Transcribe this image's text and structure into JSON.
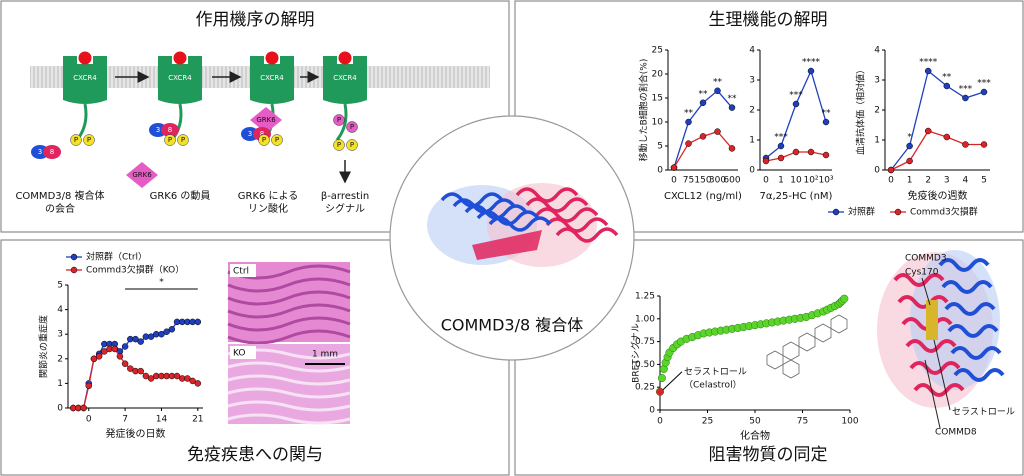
{
  "panels": {
    "mechanism": {
      "title": "作用機序の解明",
      "receptor": "CXCR4",
      "steps": [
        [
          "COMMD3/8 複合体",
          "の会合"
        ],
        [
          "GRK6 の動員"
        ],
        [
          "GRK6 による",
          "リン酸化"
        ],
        [
          "β-arrestin",
          "シグナル"
        ]
      ],
      "labels": {
        "commd3": "3",
        "commd8": "8",
        "phospho": "P",
        "grk6": "GRK6"
      }
    },
    "physiology": {
      "title": "生理機能の解明"
    },
    "disease": {
      "title": "免疫疾患への関与",
      "images": [
        "Ctrl",
        "KO"
      ],
      "scale_bar": "1 mm"
    },
    "inhibitor": {
      "title": "阻害物質の同定",
      "structure_labels": [
        "COMMD3",
        "Cys170",
        "セラストロール",
        "COMMD8"
      ]
    }
  },
  "center": {
    "title": "COMMD3/8 複合体"
  },
  "chart_data": [
    {
      "type": "line",
      "xlabel": "CXCL12 (ng/ml)",
      "ylabel": "移動したB細胞の割合(%)",
      "categories": [
        "0",
        "75",
        "150",
        "300",
        "600"
      ],
      "ylim": [
        0,
        25
      ],
      "yticks": [
        0,
        5,
        10,
        15,
        20,
        25
      ],
      "series": [
        {
          "name": "対照群",
          "color": "#1f3fbf",
          "values": [
            0.5,
            10,
            14,
            16.5,
            13
          ]
        },
        {
          "name": "Commd3欠損群",
          "color": "#d9252a",
          "values": [
            0.5,
            5.5,
            7,
            8,
            4.5
          ]
        }
      ],
      "significance": [
        null,
        "**",
        "**",
        "**",
        "**"
      ]
    },
    {
      "type": "line",
      "xlabel": "7α,25-HC (nM)",
      "categories": [
        "0",
        "1",
        "10",
        "10²",
        "10³"
      ],
      "ylim": [
        0,
        4
      ],
      "yticks": [
        0,
        1,
        2,
        3,
        4
      ],
      "series": [
        {
          "name": "対照群",
          "color": "#1f3fbf",
          "values": [
            0.4,
            0.8,
            2.2,
            3.3,
            1.6
          ]
        },
        {
          "name": "Commd3欠損群",
          "color": "#d9252a",
          "values": [
            0.3,
            0.4,
            0.6,
            0.6,
            0.5
          ]
        }
      ],
      "significance": [
        null,
        "***",
        "***",
        "****",
        "**"
      ]
    },
    {
      "type": "line",
      "xlabel": "免疫後の週数",
      "ylabel": "血清抗体価（相対値）",
      "categories": [
        "0",
        "1",
        "2",
        "3",
        "4",
        "5"
      ],
      "ylim": [
        0,
        4
      ],
      "yticks": [
        0,
        1,
        2,
        3,
        4
      ],
      "series": [
        {
          "name": "対照群",
          "color": "#1f3fbf",
          "values": [
            0,
            0.8,
            3.3,
            2.8,
            2.4,
            2.6
          ]
        },
        {
          "name": "Commd3欠損群",
          "color": "#d9252a",
          "values": [
            0,
            0.3,
            1.3,
            1.1,
            0.85,
            0.85
          ]
        }
      ],
      "significance": [
        null,
        "*",
        "****",
        "**",
        "***",
        "***"
      ],
      "legend": "below"
    },
    {
      "type": "line",
      "xlabel": "発症後の日数",
      "ylabel": "関節炎の重症度",
      "x": [
        -3,
        -2,
        -1,
        0,
        1,
        2,
        3,
        4,
        5,
        6,
        7,
        8,
        9,
        10,
        11,
        12,
        13,
        14,
        15,
        16,
        17,
        18,
        19,
        20,
        21
      ],
      "xlim": [
        -4,
        22
      ],
      "xticks": [
        0,
        7,
        14,
        21
      ],
      "ylim": [
        0,
        5
      ],
      "yticks": [
        0,
        1,
        2,
        3,
        4,
        5
      ],
      "series": [
        {
          "name": "対照群（Ctrl）",
          "color": "#1f3fbf",
          "values": [
            0,
            0,
            0,
            1,
            2,
            2.2,
            2.6,
            2.6,
            2.6,
            2.3,
            2.5,
            2.8,
            2.8,
            2.7,
            2.9,
            2.9,
            3,
            3,
            3.1,
            3.2,
            3.5,
            3.5,
            3.5,
            3.5,
            3.5
          ]
        },
        {
          "name": "Commd3欠損群（KO）",
          "color": "#d9252a",
          "values": [
            0,
            0,
            0,
            0.9,
            2,
            2.1,
            2.3,
            2.4,
            2.4,
            2.1,
            1.8,
            1.6,
            1.5,
            1.5,
            1.3,
            1.2,
            1.3,
            1.3,
            1.3,
            1.3,
            1.3,
            1.2,
            1.2,
            1.1,
            1.0
          ]
        }
      ],
      "significance_label": "*",
      "legend": "upper left"
    },
    {
      "type": "scatter",
      "xlabel": "化合物",
      "ylabel": "BRETシグナル",
      "xlim": [
        0,
        100
      ],
      "xticks": [
        0,
        25,
        50,
        75,
        100
      ],
      "ylim": [
        0,
        1.25
      ],
      "yticks": [
        0,
        {
          "value": 0.25,
          "label": "0.25"
        },
        {
          "value": 0.5,
          "label": "0.50"
        },
        {
          "value": 0.75,
          "label": "0.75"
        },
        {
          "value": 1,
          "label": "1.00"
        },
        {
          "value": 1.25,
          "label": "1.25"
        }
      ],
      "series": [
        {
          "color": "#5ad52a",
          "x": [
            1,
            2,
            3,
            4,
            5,
            7,
            9,
            11,
            14,
            17,
            20,
            23,
            26,
            29,
            32,
            35,
            38,
            41,
            44,
            47,
            50,
            53,
            56,
            59,
            62,
            65,
            68,
            71,
            74,
            77,
            80,
            83,
            86,
            88,
            90,
            92,
            94,
            95,
            96,
            97
          ],
          "values": [
            0.35,
            0.45,
            0.52,
            0.58,
            0.63,
            0.68,
            0.72,
            0.75,
            0.78,
            0.8,
            0.82,
            0.84,
            0.85,
            0.86,
            0.87,
            0.88,
            0.89,
            0.9,
            0.91,
            0.92,
            0.93,
            0.94,
            0.95,
            0.96,
            0.97,
            0.98,
            0.99,
            1.0,
            1.01,
            1.02,
            1.04,
            1.06,
            1.08,
            1.1,
            1.12,
            1.14,
            1.16,
            1.18,
            1.2,
            1.22
          ]
        },
        {
          "color": "#d9252a",
          "x": [
            0
          ],
          "values": [
            0.2
          ]
        }
      ],
      "annotation": [
        "セラストロール",
        "（Celastrol）"
      ]
    }
  ]
}
